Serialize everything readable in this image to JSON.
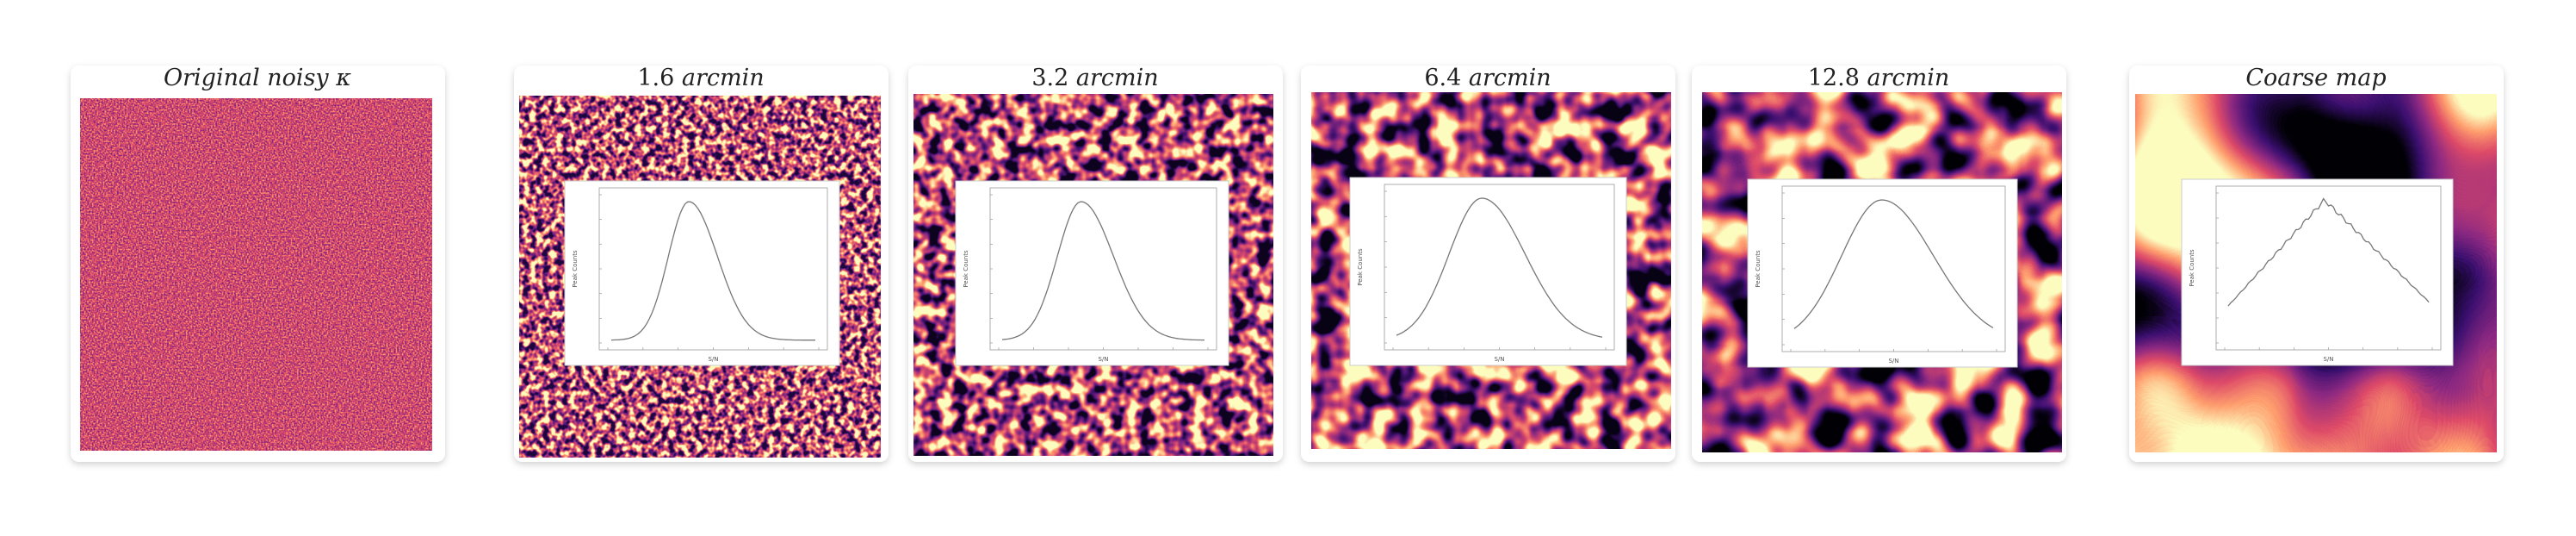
{
  "panels": [
    {
      "title": "Original noisy",
      "symbol": "κ"
    },
    {
      "value": "1.6",
      "unit": "arcmin"
    },
    {
      "value": "3.2",
      "unit": "arcmin"
    },
    {
      "value": "6.4",
      "unit": "arcmin"
    },
    {
      "value": "12.8",
      "unit": "arcmin"
    },
    {
      "title": "Coarse map"
    }
  ],
  "inset": {
    "x_label": "S/N",
    "y_label": "Peak Counts"
  }
}
